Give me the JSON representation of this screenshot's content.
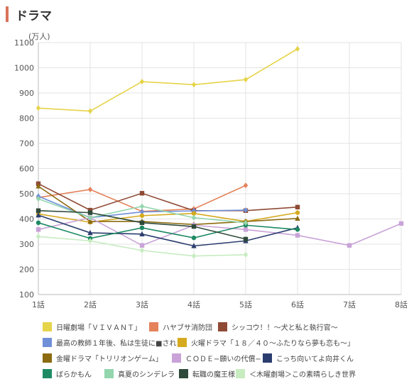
{
  "page": {
    "title": "ドラマ",
    "header_color": "#d9735a"
  },
  "chart_data": {
    "type": "line",
    "title": "",
    "ylabel": "(万人)",
    "xlabel": "",
    "categories": [
      "1話",
      "2話",
      "3話",
      "4話",
      "5話",
      "6話",
      "7話",
      "8話"
    ],
    "ylim": [
      100,
      1100
    ],
    "yticks": [
      100,
      200,
      300,
      400,
      500,
      600,
      700,
      800,
      900,
      1000,
      1100
    ],
    "grid": true,
    "legend_position": "bottom",
    "series": [
      {
        "name": "日曜劇場「ＶＩＶＡＮＴ」",
        "color": "#e6d44a",
        "marker": "diamond",
        "values": [
          840,
          828,
          945,
          933,
          953,
          1075,
          null,
          null
        ]
      },
      {
        "name": "ハヤブサ消防団",
        "color": "#e4825a",
        "marker": "diamond",
        "values": [
          485,
          517,
          430,
          440,
          533,
          null,
          null,
          null
        ]
      },
      {
        "name": "シッコウ！！～犬と私と執行官～",
        "color": "#8e4a35",
        "marker": "square",
        "values": [
          540,
          435,
          502,
          433,
          433,
          447,
          null,
          null
        ]
      },
      {
        "name": "最高の教師１年後、私は生徒に■された",
        "color": "#6f8fd8",
        "marker": "diamond",
        "values": [
          490,
          405,
          428,
          432,
          435,
          null,
          null,
          null
        ]
      },
      {
        "name": "火曜ドラマ「１８／４０～ふたりなら夢も恋も～」",
        "color": "#d5aa20",
        "marker": "circle",
        "values": [
          420,
          387,
          413,
          422,
          390,
          425,
          null,
          null
        ]
      },
      {
        "name": "金曜ドラマ「トリリオンゲーム」",
        "color": "#8c6b10",
        "marker": "triangle",
        "values": [
          530,
          390,
          390,
          378,
          390,
          402,
          null,
          null
        ]
      },
      {
        "name": "ＣＯＤＥ−願いの代償−",
        "color": "#c9a3d8",
        "marker": "square",
        "values": [
          358,
          405,
          295,
          375,
          358,
          335,
          295,
          382
        ]
      },
      {
        "name": "こっち向いてよ向井くん",
        "color": "#2a3d6e",
        "marker": "triangle",
        "values": [
          415,
          345,
          340,
          293,
          313,
          365,
          null,
          null
        ]
      },
      {
        "name": "ばらかもん",
        "color": "#1e8a63",
        "marker": "circle",
        "values": [
          385,
          323,
          365,
          325,
          375,
          358,
          null,
          null
        ]
      },
      {
        "name": "真夏のシンデレラ",
        "color": "#93d6ae",
        "marker": "diamond",
        "values": [
          480,
          405,
          450,
          405,
          385,
          null,
          null,
          null
        ]
      },
      {
        "name": "転職の魔王様",
        "color": "#2f4a3a",
        "marker": "square",
        "values": [
          433,
          425,
          385,
          370,
          320,
          null,
          null,
          null
        ]
      },
      {
        "name": "＜木曜劇場＞この素晴らしき世界",
        "color": "#c6ecc0",
        "marker": "diamond",
        "values": [
          330,
          313,
          275,
          253,
          258,
          null,
          null,
          null
        ]
      }
    ]
  }
}
